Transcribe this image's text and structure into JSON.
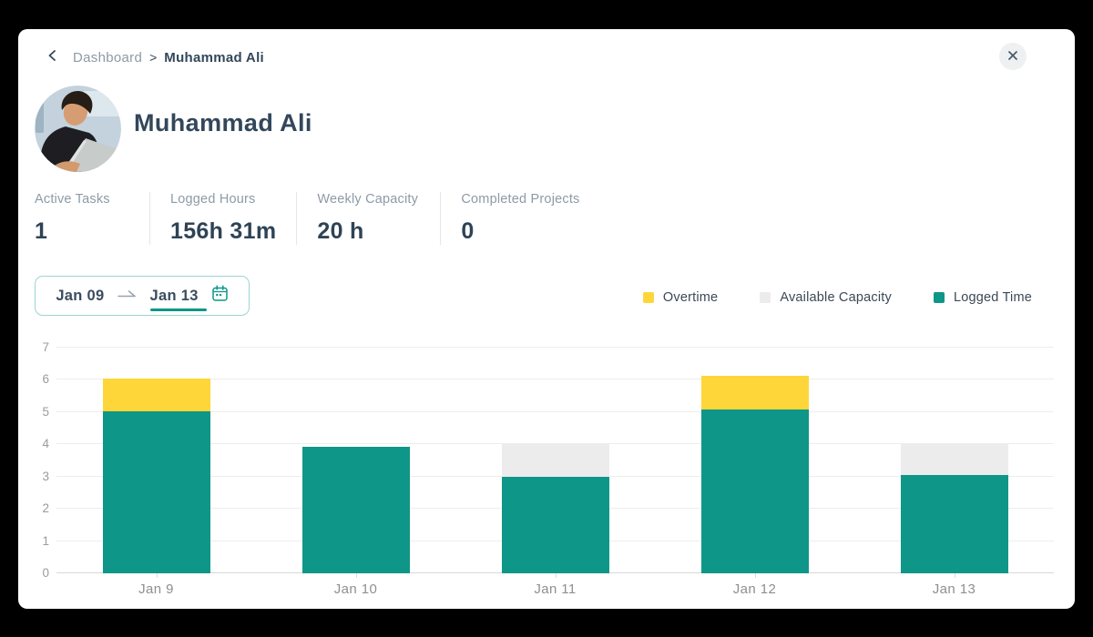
{
  "header": {
    "breadcrumb": {
      "parent": "Dashboard",
      "separator": ">",
      "current": "Muhammad Ali"
    }
  },
  "icons": {
    "back": "chevron-left-icon",
    "close": "close-icon",
    "date_arrow": "arrow-right-icon",
    "calendar": "calendar-icon"
  },
  "profile": {
    "name": "Muhammad Ali"
  },
  "stats": {
    "items": [
      {
        "label": "Active Tasks",
        "value": "1"
      },
      {
        "label": "Logged Hours",
        "value": "156h 31m"
      },
      {
        "label": "Weekly Capacity",
        "value": "20 h"
      },
      {
        "label": "Completed Projects",
        "value": "0"
      }
    ]
  },
  "date_range": {
    "start": "Jan 09",
    "end": "Jan 13"
  },
  "colors": {
    "accent_teal": "#0E9688",
    "overtime_yellow": "#FFD63A",
    "available_gray": "#ECECEC",
    "text_dark": "#33475B",
    "text_gray": "#8E9AA7"
  },
  "chart_data": {
    "type": "bar",
    "stacked": true,
    "title": "",
    "xlabel": "",
    "ylabel": "",
    "ylim": [
      0,
      7
    ],
    "yticks": [
      0,
      1,
      2,
      3,
      4,
      5,
      6,
      7
    ],
    "grid": true,
    "legend_position": "top-right",
    "categories": [
      "Jan 9",
      "Jan 10",
      "Jan 11",
      "Jan 12",
      "Jan 13"
    ],
    "series": [
      {
        "name": "Logged Time",
        "color": "#0E9688",
        "values": [
          5.03,
          3.92,
          2.98,
          5.07,
          3.04
        ]
      },
      {
        "name": "Available Capacity",
        "color": "#ECECEC",
        "values": [
          0,
          0,
          1.02,
          0,
          0.96
        ]
      },
      {
        "name": "Overtime",
        "color": "#FFD63A",
        "values": [
          1.0,
          0,
          0,
          1.05,
          0
        ]
      }
    ],
    "legend": [
      {
        "label": "Overtime",
        "color": "#FFD63A"
      },
      {
        "label": "Available Capacity",
        "color": "#ECECEC"
      },
      {
        "label": "Logged Time",
        "color": "#0E9688"
      }
    ]
  }
}
